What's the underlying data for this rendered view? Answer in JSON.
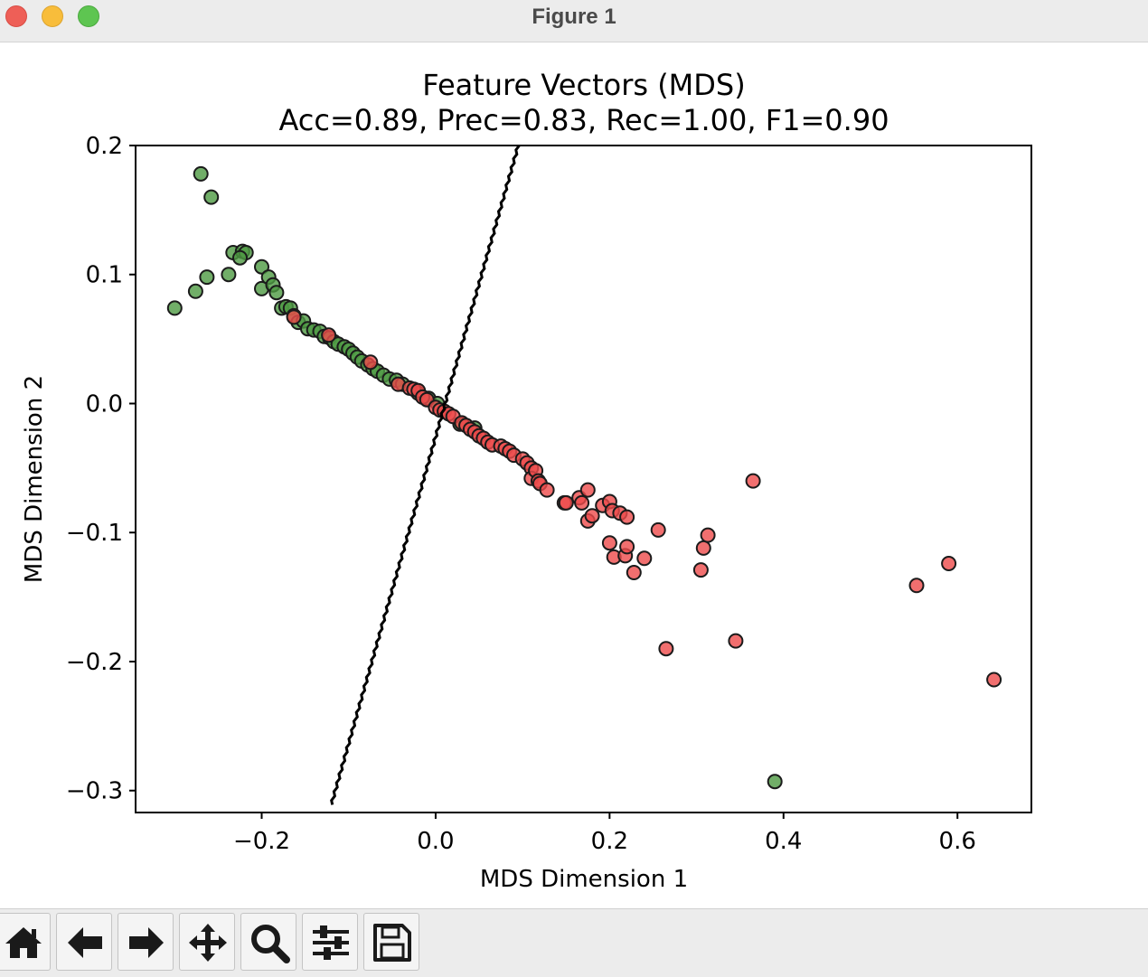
{
  "window": {
    "title": "Figure 1"
  },
  "toolbar": {
    "buttons": [
      {
        "name": "home-button",
        "icon": "home-icon"
      },
      {
        "name": "back-button",
        "icon": "arrow-left-icon"
      },
      {
        "name": "forward-button",
        "icon": "arrow-right-icon"
      },
      {
        "name": "pan-button",
        "icon": "move-icon"
      },
      {
        "name": "zoom-button",
        "icon": "magnifier-icon"
      },
      {
        "name": "configure-subplots-button",
        "icon": "sliders-icon"
      },
      {
        "name": "save-button",
        "icon": "floppy-disk-icon"
      }
    ]
  },
  "chart_data": {
    "type": "scatter",
    "title": "Feature Vectors (MDS)",
    "subtitle": "Acc=0.89, Prec=0.83, Rec=1.00, F1=0.90",
    "xlabel": "MDS Dimension 1",
    "ylabel": "MDS Dimension 2",
    "xlim": [
      -0.345,
      0.685
    ],
    "ylim": [
      -0.317,
      0.2
    ],
    "xticks": [
      -0.2,
      0.0,
      0.2,
      0.4,
      0.6
    ],
    "xtick_labels": [
      "−0.2",
      "0.0",
      "0.2",
      "0.4",
      "0.6"
    ],
    "yticks": [
      0.2,
      0.1,
      0.0,
      -0.1,
      -0.2,
      -0.3
    ],
    "ytick_labels": [
      "0.2",
      "0.1",
      "0.0",
      "−0.1",
      "−0.2",
      "−0.3"
    ],
    "grid": false,
    "colors": {
      "class_0": "#4d9a42",
      "class_1": "#ee4b4b",
      "boundary": "#000000"
    },
    "decision_boundary": [
      [
        -0.12,
        -0.311
      ],
      [
        0.095,
        0.2
      ]
    ],
    "series": [
      {
        "color_key": "class_0",
        "points": [
          [
            -0.27,
            0.178
          ],
          [
            -0.258,
            0.16
          ],
          [
            -0.233,
            0.117
          ],
          [
            -0.222,
            0.118
          ],
          [
            -0.218,
            0.117
          ],
          [
            -0.225,
            0.113
          ],
          [
            -0.3,
            0.074
          ],
          [
            -0.276,
            0.087
          ],
          [
            -0.263,
            0.098
          ],
          [
            -0.238,
            0.1
          ],
          [
            -0.2,
            0.106
          ],
          [
            -0.2,
            0.089
          ],
          [
            -0.192,
            0.098
          ],
          [
            -0.187,
            0.092
          ],
          [
            -0.183,
            0.086
          ],
          [
            -0.177,
            0.074
          ],
          [
            -0.172,
            0.075
          ],
          [
            -0.167,
            0.074
          ],
          [
            -0.163,
            0.068
          ],
          [
            -0.158,
            0.063
          ],
          [
            -0.152,
            0.064
          ],
          [
            -0.147,
            0.058
          ],
          [
            -0.14,
            0.057
          ],
          [
            -0.133,
            0.056
          ],
          [
            -0.128,
            0.052
          ],
          [
            -0.122,
            0.051
          ],
          [
            -0.117,
            0.048
          ],
          [
            -0.112,
            0.046
          ],
          [
            -0.105,
            0.044
          ],
          [
            -0.1,
            0.042
          ],
          [
            -0.095,
            0.039
          ],
          [
            -0.09,
            0.036
          ],
          [
            -0.085,
            0.033
          ],
          [
            -0.078,
            0.03
          ],
          [
            -0.072,
            0.027
          ],
          [
            -0.067,
            0.025
          ],
          [
            -0.06,
            0.022
          ],
          [
            -0.053,
            0.019
          ],
          [
            -0.045,
            0.018
          ],
          [
            -0.038,
            0.015
          ],
          [
            -0.02,
            0.008
          ],
          [
            -0.008,
            0.004
          ],
          [
            0.002,
            0.0
          ],
          [
            0.028,
            -0.016
          ],
          [
            0.045,
            -0.019
          ],
          [
            0.39,
            -0.293
          ]
        ]
      },
      {
        "color_key": "class_1",
        "points": [
          [
            -0.163,
            0.067
          ],
          [
            -0.123,
            0.053
          ],
          [
            -0.075,
            0.032
          ],
          [
            -0.043,
            0.015
          ],
          [
            -0.03,
            0.012
          ],
          [
            -0.025,
            0.011
          ],
          [
            -0.02,
            0.01
          ],
          [
            -0.015,
            0.005
          ],
          [
            -0.01,
            0.003
          ],
          [
            0.0,
            -0.003
          ],
          [
            0.005,
            -0.005
          ],
          [
            0.01,
            -0.006
          ],
          [
            0.015,
            -0.008
          ],
          [
            0.02,
            -0.01
          ],
          [
            0.03,
            -0.015
          ],
          [
            0.035,
            -0.017
          ],
          [
            0.04,
            -0.02
          ],
          [
            0.045,
            -0.022
          ],
          [
            0.05,
            -0.025
          ],
          [
            0.055,
            -0.027
          ],
          [
            0.06,
            -0.03
          ],
          [
            0.065,
            -0.032
          ],
          [
            0.075,
            -0.033
          ],
          [
            0.08,
            -0.035
          ],
          [
            0.085,
            -0.037
          ],
          [
            0.09,
            -0.04
          ],
          [
            0.1,
            -0.043
          ],
          [
            0.105,
            -0.046
          ],
          [
            0.11,
            -0.05
          ],
          [
            0.11,
            -0.058
          ],
          [
            0.115,
            -0.052
          ],
          [
            0.118,
            -0.06
          ],
          [
            0.12,
            -0.062
          ],
          [
            0.128,
            -0.067
          ],
          [
            0.148,
            -0.077
          ],
          [
            0.15,
            -0.077
          ],
          [
            0.165,
            -0.073
          ],
          [
            0.168,
            -0.077
          ],
          [
            0.175,
            -0.067
          ],
          [
            0.175,
            -0.091
          ],
          [
            0.18,
            -0.087
          ],
          [
            0.192,
            -0.079
          ],
          [
            0.2,
            -0.076
          ],
          [
            0.203,
            -0.083
          ],
          [
            0.212,
            -0.085
          ],
          [
            0.22,
            -0.088
          ],
          [
            0.2,
            -0.108
          ],
          [
            0.205,
            -0.119
          ],
          [
            0.218,
            -0.118
          ],
          [
            0.22,
            -0.111
          ],
          [
            0.228,
            -0.131
          ],
          [
            0.24,
            -0.12
          ],
          [
            0.256,
            -0.098
          ],
          [
            0.265,
            -0.19
          ],
          [
            0.305,
            -0.129
          ],
          [
            0.308,
            -0.112
          ],
          [
            0.313,
            -0.102
          ],
          [
            0.345,
            -0.184
          ],
          [
            0.365,
            -0.06
          ],
          [
            0.553,
            -0.141
          ],
          [
            0.59,
            -0.124
          ],
          [
            0.642,
            -0.214
          ]
        ]
      }
    ]
  }
}
